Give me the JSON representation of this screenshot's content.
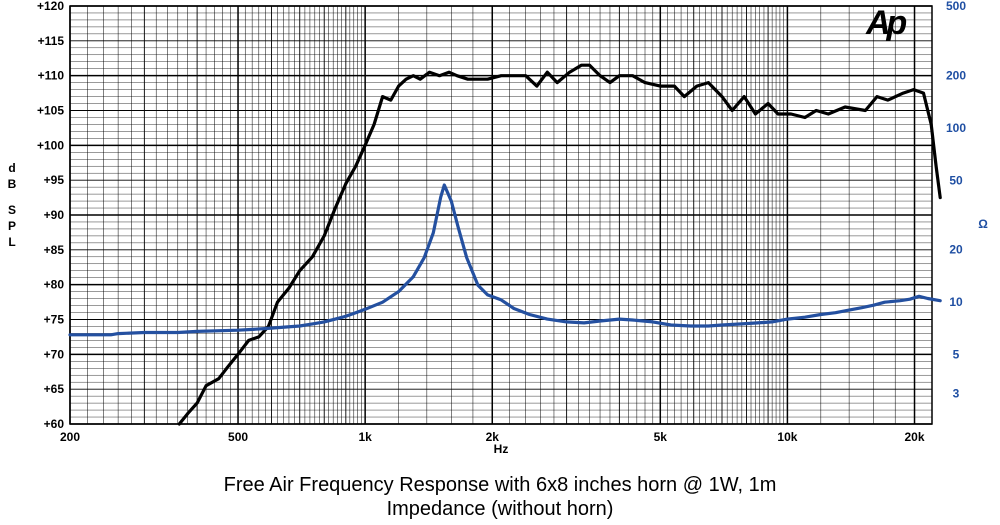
{
  "chart_data": {
    "type": "line",
    "title": "Free Air Frequency Response with 6x8 inches horn @ 1W, 1m",
    "subtitle": "Impedance (without horn)",
    "xlabel": "Hz",
    "ylabel": "dB SPL",
    "ylabel_right": "Ω",
    "x_scale": "log",
    "xlim": [
      200,
      22000
    ],
    "ylim": [
      60,
      120
    ],
    "ylim_right": [
      2,
      500
    ],
    "y_right_scale": "log",
    "grid": true,
    "x_ticks": [
      {
        "value": 200,
        "label": "200"
      },
      {
        "value": 500,
        "label": "500"
      },
      {
        "value": 1000,
        "label": "1k"
      },
      {
        "value": 2000,
        "label": "2k"
      },
      {
        "value": 5000,
        "label": "5k"
      },
      {
        "value": 10000,
        "label": "10k"
      },
      {
        "value": 20000,
        "label": "20k"
      }
    ],
    "y_ticks": [
      {
        "value": 120,
        "label": "+120"
      },
      {
        "value": 115,
        "label": "+115"
      },
      {
        "value": 110,
        "label": "+110"
      },
      {
        "value": 105,
        "label": "+105"
      },
      {
        "value": 100,
        "label": "+100"
      },
      {
        "value": 95,
        "label": "+95"
      },
      {
        "value": 90,
        "label": "+90"
      },
      {
        "value": 85,
        "label": "+85"
      },
      {
        "value": 80,
        "label": "+80"
      },
      {
        "value": 75,
        "label": "+75"
      },
      {
        "value": 70,
        "label": "+70"
      },
      {
        "value": 65,
        "label": "+65"
      },
      {
        "value": 60,
        "label": "+60"
      }
    ],
    "y_right_ticks": [
      {
        "value": 500,
        "label": "500"
      },
      {
        "value": 200,
        "label": "200"
      },
      {
        "value": 100,
        "label": "100"
      },
      {
        "value": 50,
        "label": "50"
      },
      {
        "value": 20,
        "label": "20"
      },
      {
        "value": 10,
        "label": "10"
      },
      {
        "value": 5,
        "label": "5"
      },
      {
        "value": 3,
        "label": "3"
      }
    ],
    "series": [
      {
        "axis": "left",
        "color": "#000000",
        "points": [
          [
            363,
            60
          ],
          [
            380,
            61.5
          ],
          [
            400,
            63
          ],
          [
            420,
            65.5
          ],
          [
            450,
            66.5
          ],
          [
            470,
            68
          ],
          [
            500,
            70
          ],
          [
            530,
            72
          ],
          [
            560,
            72.5
          ],
          [
            590,
            74
          ],
          [
            620,
            77.5
          ],
          [
            660,
            79.5
          ],
          [
            700,
            82
          ],
          [
            750,
            84
          ],
          [
            800,
            87
          ],
          [
            850,
            91
          ],
          [
            900,
            94.5
          ],
          [
            950,
            97
          ],
          [
            1000,
            100
          ],
          [
            1050,
            103
          ],
          [
            1100,
            107
          ],
          [
            1150,
            106.5
          ],
          [
            1200,
            108.5
          ],
          [
            1250,
            109.5
          ],
          [
            1300,
            110
          ],
          [
            1350,
            109.5
          ],
          [
            1420,
            110.5
          ],
          [
            1500,
            110
          ],
          [
            1580,
            110.5
          ],
          [
            1650,
            110
          ],
          [
            1750,
            109.5
          ],
          [
            1850,
            109.5
          ],
          [
            1950,
            109.5
          ],
          [
            2100,
            110
          ],
          [
            2250,
            110
          ],
          [
            2400,
            110
          ],
          [
            2550,
            108.5
          ],
          [
            2700,
            110.5
          ],
          [
            2850,
            109
          ],
          [
            3050,
            110.5
          ],
          [
            3250,
            111.5
          ],
          [
            3400,
            111.5
          ],
          [
            3600,
            110
          ],
          [
            3800,
            109
          ],
          [
            4000,
            110
          ],
          [
            4300,
            110
          ],
          [
            4600,
            109
          ],
          [
            5000,
            108.5
          ],
          [
            5400,
            108.5
          ],
          [
            5700,
            107
          ],
          [
            6100,
            108.5
          ],
          [
            6500,
            109
          ],
          [
            7000,
            107
          ],
          [
            7400,
            105
          ],
          [
            7900,
            107
          ],
          [
            8400,
            104.5
          ],
          [
            9000,
            106
          ],
          [
            9500,
            104.5
          ],
          [
            10200,
            104.5
          ],
          [
            11000,
            104
          ],
          [
            11700,
            105
          ],
          [
            12500,
            104.5
          ],
          [
            13700,
            105.5
          ],
          [
            15300,
            105
          ],
          [
            16300,
            107
          ],
          [
            17300,
            106.5
          ],
          [
            18800,
            107.5
          ],
          [
            19900,
            108
          ],
          [
            21000,
            107.5
          ],
          [
            21900,
            103
          ],
          [
            22500,
            97
          ],
          [
            23000,
            92.5
          ]
        ]
      },
      {
        "axis": "right",
        "color": "#2450a0",
        "points": [
          [
            200,
            6.5
          ],
          [
            250,
            6.5
          ],
          [
            260,
            6.6
          ],
          [
            300,
            6.7
          ],
          [
            360,
            6.7
          ],
          [
            400,
            6.8
          ],
          [
            500,
            6.9
          ],
          [
            550,
            7.0
          ],
          [
            600,
            7.1
          ],
          [
            650,
            7.2
          ],
          [
            700,
            7.3
          ],
          [
            750,
            7.5
          ],
          [
            800,
            7.7
          ],
          [
            850,
            8.0
          ],
          [
            900,
            8.3
          ],
          [
            950,
            8.7
          ],
          [
            1000,
            9.1
          ],
          [
            1100,
            10.0
          ],
          [
            1200,
            11.5
          ],
          [
            1300,
            14.0
          ],
          [
            1380,
            18.0
          ],
          [
            1450,
            25.0
          ],
          [
            1510,
            40.0
          ],
          [
            1540,
            47.0
          ],
          [
            1600,
            38.0
          ],
          [
            1660,
            27.0
          ],
          [
            1740,
            18.0
          ],
          [
            1850,
            12.5
          ],
          [
            1950,
            11.0
          ],
          [
            2100,
            10.3
          ],
          [
            2250,
            9.2
          ],
          [
            2450,
            8.5
          ],
          [
            2700,
            8.0
          ],
          [
            3000,
            7.7
          ],
          [
            3300,
            7.6
          ],
          [
            3600,
            7.8
          ],
          [
            4000,
            8.0
          ],
          [
            4300,
            7.9
          ],
          [
            4800,
            7.7
          ],
          [
            5300,
            7.4
          ],
          [
            5900,
            7.3
          ],
          [
            6500,
            7.3
          ],
          [
            7000,
            7.4
          ],
          [
            7800,
            7.5
          ],
          [
            8500,
            7.6
          ],
          [
            9200,
            7.7
          ],
          [
            10000,
            8.0
          ],
          [
            11000,
            8.2
          ],
          [
            12000,
            8.5
          ],
          [
            13000,
            8.7
          ],
          [
            14000,
            9.0
          ],
          [
            15000,
            9.3
          ],
          [
            16000,
            9.6
          ],
          [
            17000,
            10.0
          ],
          [
            18500,
            10.2
          ],
          [
            19500,
            10.4
          ],
          [
            20500,
            10.8
          ],
          [
            21500,
            10.5
          ],
          [
            23000,
            10.2
          ]
        ]
      }
    ]
  },
  "logo_text": "Ap"
}
